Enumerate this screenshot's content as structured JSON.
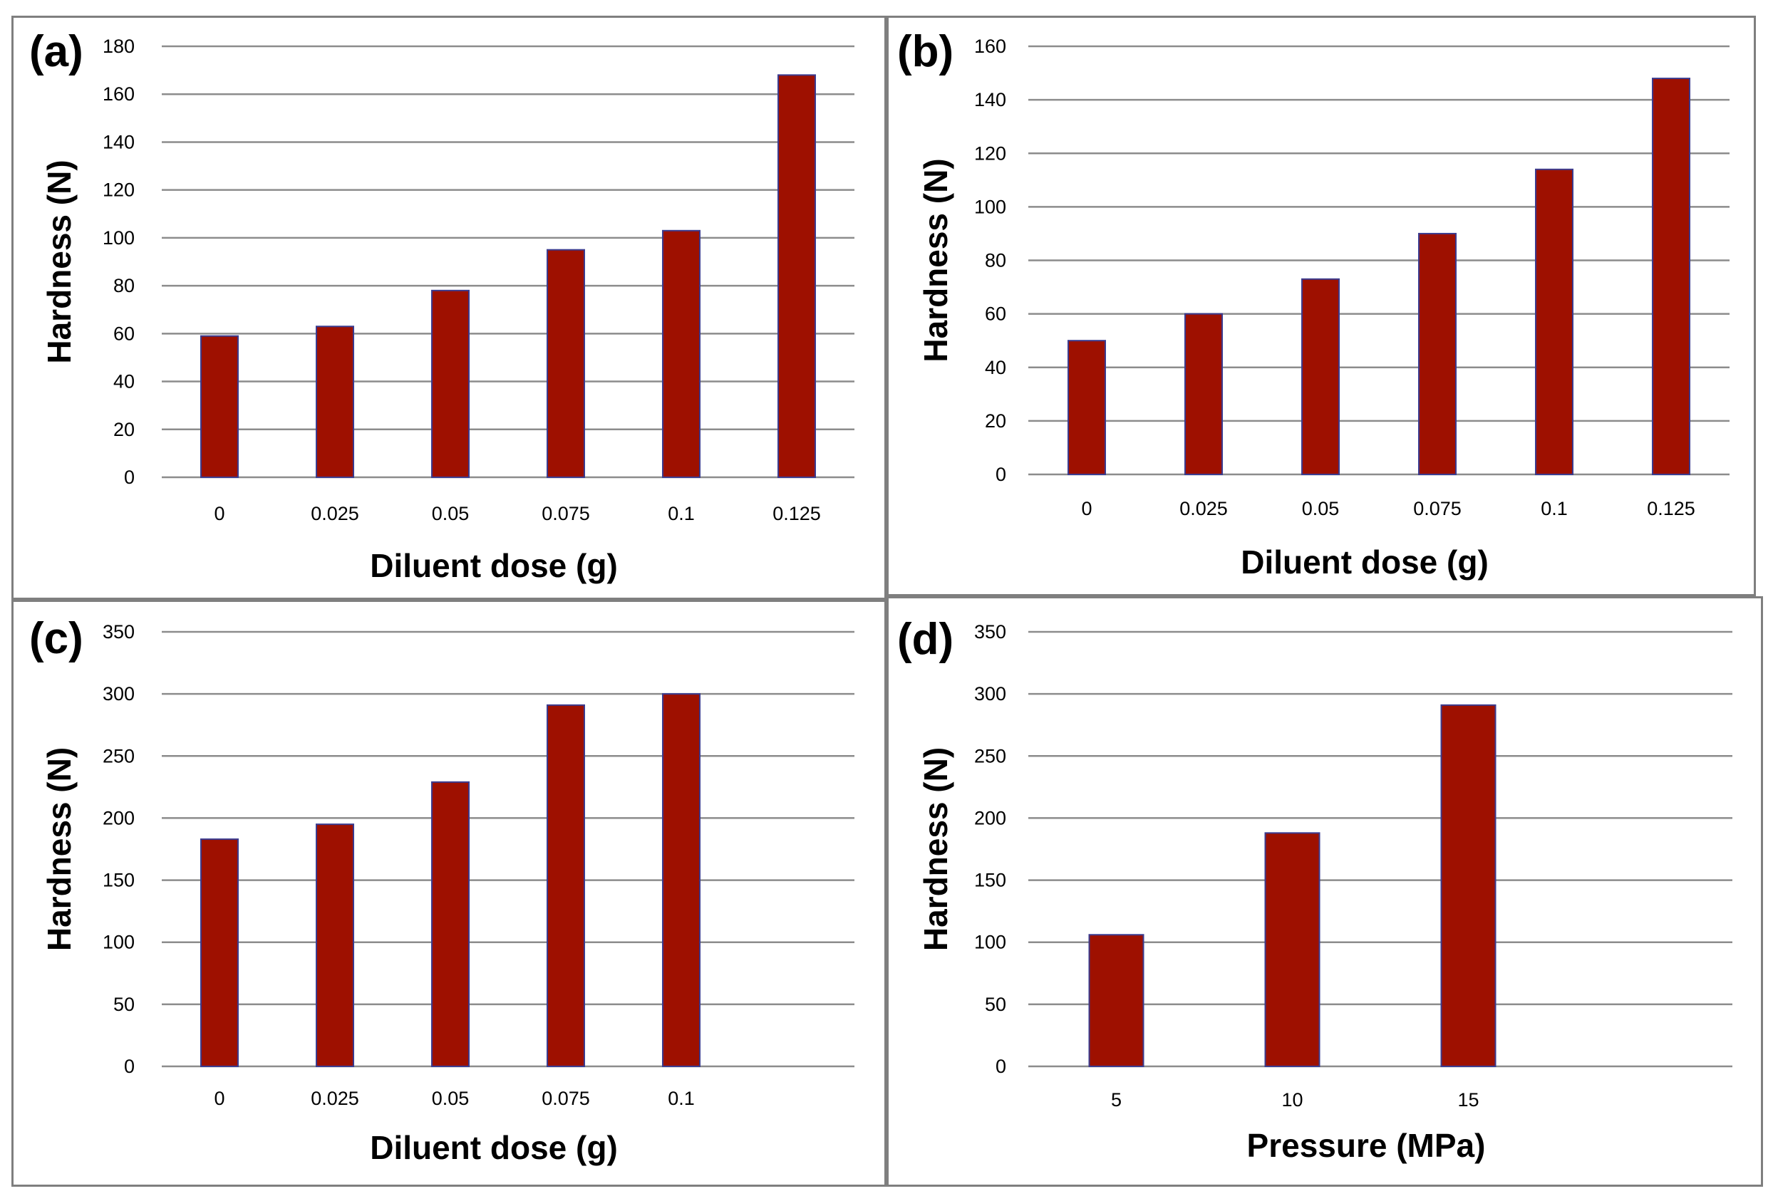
{
  "chart_data": [
    {
      "type": "bar",
      "panel_label": "(a)",
      "categories": [
        "0",
        "0.025",
        "0.05",
        "0.075",
        "0.1",
        "0.125"
      ],
      "values": [
        59,
        63,
        78,
        95,
        103,
        168
      ],
      "ylim": [
        0,
        180
      ],
      "yticks": [
        "0",
        "20",
        "40",
        "60",
        "80",
        "100",
        "120",
        "140",
        "160",
        "180"
      ],
      "xlabel": "Diluent dose (g)",
      "ylabel": "Hardness (N)",
      "color": "#9e1000"
    },
    {
      "type": "bar",
      "panel_label": "(b)",
      "categories": [
        "0",
        "0.025",
        "0.05",
        "0.075",
        "0.1",
        "0.125"
      ],
      "values": [
        50,
        60,
        73,
        90,
        114,
        148
      ],
      "ylim": [
        0,
        160
      ],
      "yticks": [
        "0",
        "20",
        "40",
        "60",
        "80",
        "100",
        "120",
        "140",
        "160"
      ],
      "xlabel": "Diluent dose (g)",
      "ylabel": "Hardness (N)",
      "color": "#9e1000"
    },
    {
      "type": "bar",
      "panel_label": "(c)",
      "categories": [
        "0",
        "0.025",
        "0.05",
        "0.075",
        "0.1",
        ""
      ],
      "values": [
        183,
        195,
        229,
        291,
        300,
        null
      ],
      "ylim": [
        0,
        350
      ],
      "yticks": [
        "0",
        "50",
        "100",
        "150",
        "200",
        "250",
        "300",
        "350"
      ],
      "xlabel": "Diluent dose (g)",
      "ylabel": "Hardness (N)",
      "color": "#9e1000"
    },
    {
      "type": "bar",
      "panel_label": "(d)",
      "categories": [
        "5",
        "10",
        "15",
        ""
      ],
      "values": [
        106,
        188,
        291,
        null
      ],
      "ylim": [
        0,
        350
      ],
      "yticks": [
        "0",
        "50",
        "100",
        "150",
        "200",
        "250",
        "300",
        "350"
      ],
      "xlabel": "Pressure (MPa)",
      "ylabel": "Hardness (N)",
      "color": "#9e1000"
    }
  ]
}
